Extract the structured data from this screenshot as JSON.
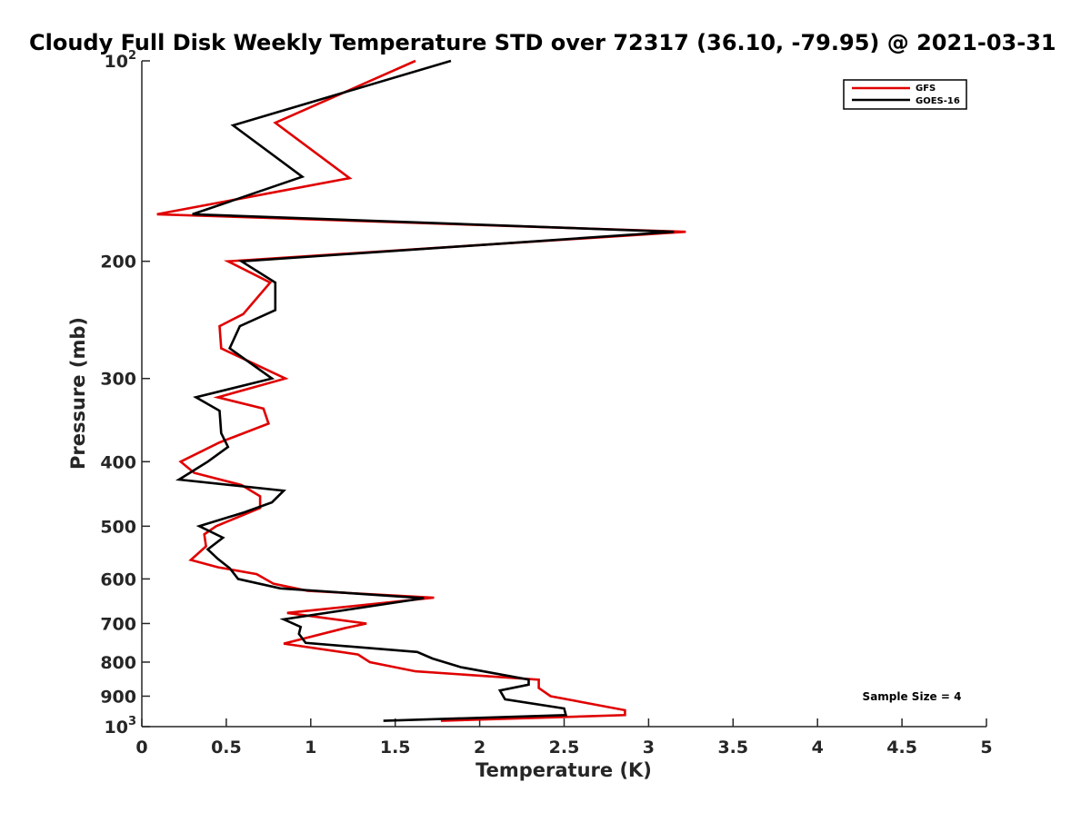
{
  "chart_data": {
    "type": "line",
    "title": "Cloudy Full Disk Weekly Temperature STD over 72317 (36.10, -79.95) @ 2021-03-31",
    "xlabel": "Temperature (K)",
    "ylabel": "Pressure (mb)",
    "xlim": [
      0,
      5
    ],
    "ylim": [
      100,
      1000
    ],
    "y_scale": "log",
    "y_reversed": true,
    "x_ticks": [
      0,
      0.5,
      1,
      1.5,
      2,
      2.5,
      3,
      3.5,
      4,
      4.5,
      5
    ],
    "x_tick_labels": [
      "0",
      "0.5",
      "1",
      "1.5",
      "2",
      "2.5",
      "3",
      "3.5",
      "4",
      "4.5",
      "5"
    ],
    "y_ticks": [
      100,
      200,
      300,
      400,
      500,
      600,
      700,
      800,
      900,
      1000
    ],
    "y_tick_labels": [
      {
        "base": "10",
        "exp": "2"
      },
      {
        "base": "200",
        "exp": ""
      },
      {
        "base": "300",
        "exp": ""
      },
      {
        "base": "400",
        "exp": ""
      },
      {
        "base": "500",
        "exp": ""
      },
      {
        "base": "600",
        "exp": ""
      },
      {
        "base": "700",
        "exp": ""
      },
      {
        "base": "800",
        "exp": ""
      },
      {
        "base": "900",
        "exp": ""
      },
      {
        "base": "10",
        "exp": "3"
      }
    ],
    "grid": false,
    "legend_position": "top-right",
    "annotation": "Sample Size = 4",
    "series": [
      {
        "name": "GFS",
        "color": "#e00000",
        "points": [
          [
            1.62,
            100
          ],
          [
            0.79,
            123.9
          ],
          [
            1.23,
            150
          ],
          [
            0.09,
            170.0
          ],
          [
            3.22,
            180.6
          ],
          [
            0.51,
            200
          ],
          [
            0.76,
            215.3
          ],
          [
            0.6,
            240.1
          ],
          [
            0.46,
            250.3
          ],
          [
            0.47,
            270.3
          ],
          [
            0.85,
            300
          ],
          [
            0.45,
            320.1
          ],
          [
            0.72,
            332.9
          ],
          [
            0.75,
            350.7
          ],
          [
            0.46,
            374.2
          ],
          [
            0.23,
            400
          ],
          [
            0.31,
            415.8
          ],
          [
            0.59,
            433.6
          ],
          [
            0.7,
            450.8
          ],
          [
            0.7,
            469.3
          ],
          [
            0.44,
            500
          ],
          [
            0.37,
            514.2
          ],
          [
            0.38,
            536.0
          ],
          [
            0.29,
            561.9
          ],
          [
            0.45,
            576.2
          ],
          [
            0.68,
            590.2
          ],
          [
            0.78,
            610.1
          ],
          [
            0.98,
            625.0
          ],
          [
            1.73,
            640.2
          ],
          [
            0.86,
            674.9
          ],
          [
            1.33,
            700
          ],
          [
            1.21,
            710.4
          ],
          [
            0.84,
            750.5
          ],
          [
            1.28,
            779.2
          ],
          [
            1.35,
            800
          ],
          [
            1.62,
            825.9
          ],
          [
            2.35,
            850.1
          ],
          [
            2.35,
            874.8
          ],
          [
            2.42,
            900
          ],
          [
            2.86,
            944.8
          ],
          [
            2.86,
            960.8
          ],
          [
            1.77,
            980.0
          ]
        ]
      },
      {
        "name": "GOES-16",
        "color": "#000000",
        "points": [
          [
            1.83,
            100
          ],
          [
            0.54,
            125.0
          ],
          [
            0.95,
            149.3
          ],
          [
            0.3,
            170.0
          ],
          [
            3.15,
            180.6
          ],
          [
            0.59,
            200
          ],
          [
            0.79,
            215.3
          ],
          [
            0.79,
            236.8
          ],
          [
            0.58,
            250.3
          ],
          [
            0.52,
            270.3
          ],
          [
            0.77,
            300
          ],
          [
            0.32,
            320.1
          ],
          [
            0.46,
            335.5
          ],
          [
            0.47,
            362.4
          ],
          [
            0.51,
            380.1
          ],
          [
            0.39,
            400
          ],
          [
            0.22,
            425.5
          ],
          [
            0.84,
            442.1
          ],
          [
            0.77,
            460.5
          ],
          [
            0.61,
            476.3
          ],
          [
            0.34,
            500
          ],
          [
            0.48,
            520.2
          ],
          [
            0.39,
            541.7
          ],
          [
            0.45,
            559.8
          ],
          [
            0.52,
            578.1
          ],
          [
            0.57,
            600
          ],
          [
            0.82,
            620.0
          ],
          [
            1.67,
            641.4
          ],
          [
            0.84,
            690.1
          ],
          [
            0.94,
            708.3
          ],
          [
            0.93,
            725.6
          ],
          [
            0.97,
            748.6
          ],
          [
            1.63,
            772.5
          ],
          [
            1.72,
            790.2
          ],
          [
            1.89,
            814.2
          ],
          [
            2.29,
            849.9
          ],
          [
            2.29,
            865.0
          ],
          [
            2.12,
            882.5
          ],
          [
            2.15,
            909.9
          ],
          [
            2.5,
            939.0
          ],
          [
            2.51,
            960.8
          ],
          [
            1.43,
            980.0
          ]
        ]
      }
    ]
  }
}
